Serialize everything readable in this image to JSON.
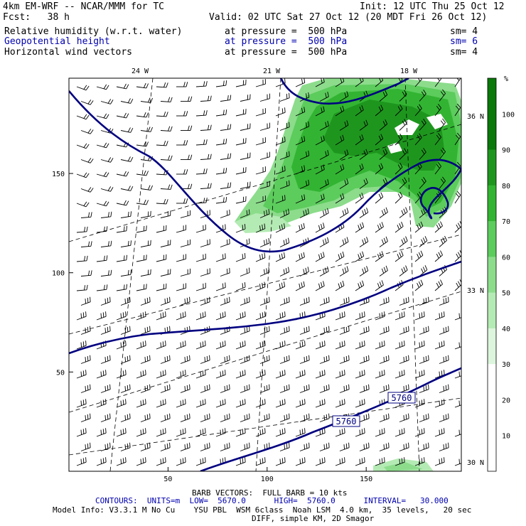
{
  "header": {
    "model": "4km EM-WRF -- NCAR/MMM for TC",
    "init": "Init: 12 UTC Thu 25 Oct 12",
    "fcst": "Fcst:   38 h",
    "valid": "Valid: 02 UTC Sat 27 Oct 12 (20 MDT Fri 26 Oct 12)"
  },
  "fields": [
    {
      "name": "Relative humidity (w.r.t. water)",
      "pressure": "at pressure =  500 hPa",
      "sm": "sm= 4",
      "color": "#000000"
    },
    {
      "name": "Geopotential height",
      "pressure": "at pressure =  500 hPa",
      "sm": "sm= 6",
      "color": "#0000b0"
    },
    {
      "name": "Horizontal wind vectors",
      "pressure": "at pressure =  500 hPa",
      "sm": "sm= 4",
      "color": "#000000"
    }
  ],
  "chart_data": {
    "type": "heatmap",
    "x_ticks": [
      50,
      100,
      150
    ],
    "y_ticks": [
      50,
      100,
      150
    ],
    "xlim": [
      0,
      198
    ],
    "ylim": [
      0,
      198
    ],
    "lon_labels": [
      "24 W",
      "21 W",
      "18 W"
    ],
    "lat_labels": [
      "36 N",
      "33 N",
      "30 N"
    ],
    "contour_labels": [
      "5760",
      "5760"
    ],
    "colorbar": {
      "unit": "%",
      "ticks": [
        10,
        20,
        30,
        40,
        50,
        60,
        70,
        80,
        90,
        100
      ],
      "colors": [
        "#ffffff",
        "#ffffff",
        "#ffffff",
        "#dcf5dc",
        "#b4ebb4",
        "#8cdc8c",
        "#5ccc5c",
        "#32b432",
        "#1e961e",
        "#0a780a"
      ]
    }
  },
  "footer": {
    "barb": "BARB VECTORS:  FULL BARB = 10 kts",
    "contours": "CONTOURS:  UNITS=m  LOW=  5670.0      HIGH=  5760.0      INTERVAL=   30.000",
    "model_info": "Model Info: V3.3.1 M No Cu    YSU PBL  WSM 6class  Noah LSM  4.0 km,  35 levels,   20 sec",
    "diff": "DIFF, simple KM, 2D Smagor"
  }
}
